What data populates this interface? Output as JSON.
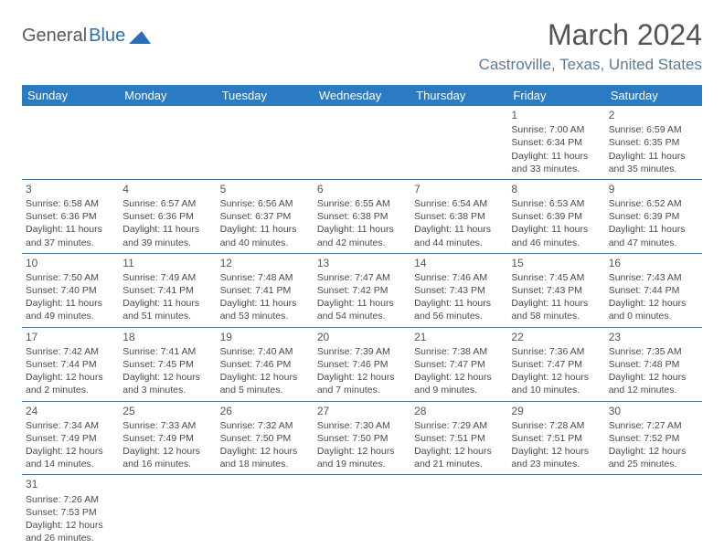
{
  "logo": {
    "part1": "General",
    "part2": "Blue"
  },
  "title": "March 2024",
  "location": "Castroville, Texas, United States",
  "colors": {
    "header_bg": "#2a7bc4",
    "header_text": "#ffffff",
    "border": "#2a7bc4",
    "location_text": "#5b7a99",
    "body_text": "#4a4a4a",
    "logo_accent": "#2a6fb5"
  },
  "day_headers": [
    "Sunday",
    "Monday",
    "Tuesday",
    "Wednesday",
    "Thursday",
    "Friday",
    "Saturday"
  ],
  "weeks": [
    [
      null,
      null,
      null,
      null,
      null,
      {
        "n": "1",
        "sr": "7:00 AM",
        "ss": "6:34 PM",
        "dh": "11",
        "dm": "33"
      },
      {
        "n": "2",
        "sr": "6:59 AM",
        "ss": "6:35 PM",
        "dh": "11",
        "dm": "35"
      }
    ],
    [
      {
        "n": "3",
        "sr": "6:58 AM",
        "ss": "6:36 PM",
        "dh": "11",
        "dm": "37"
      },
      {
        "n": "4",
        "sr": "6:57 AM",
        "ss": "6:36 PM",
        "dh": "11",
        "dm": "39"
      },
      {
        "n": "5",
        "sr": "6:56 AM",
        "ss": "6:37 PM",
        "dh": "11",
        "dm": "40"
      },
      {
        "n": "6",
        "sr": "6:55 AM",
        "ss": "6:38 PM",
        "dh": "11",
        "dm": "42"
      },
      {
        "n": "7",
        "sr": "6:54 AM",
        "ss": "6:38 PM",
        "dh": "11",
        "dm": "44"
      },
      {
        "n": "8",
        "sr": "6:53 AM",
        "ss": "6:39 PM",
        "dh": "11",
        "dm": "46"
      },
      {
        "n": "9",
        "sr": "6:52 AM",
        "ss": "6:39 PM",
        "dh": "11",
        "dm": "47"
      }
    ],
    [
      {
        "n": "10",
        "sr": "7:50 AM",
        "ss": "7:40 PM",
        "dh": "11",
        "dm": "49"
      },
      {
        "n": "11",
        "sr": "7:49 AM",
        "ss": "7:41 PM",
        "dh": "11",
        "dm": "51"
      },
      {
        "n": "12",
        "sr": "7:48 AM",
        "ss": "7:41 PM",
        "dh": "11",
        "dm": "53"
      },
      {
        "n": "13",
        "sr": "7:47 AM",
        "ss": "7:42 PM",
        "dh": "11",
        "dm": "54"
      },
      {
        "n": "14",
        "sr": "7:46 AM",
        "ss": "7:43 PM",
        "dh": "11",
        "dm": "56"
      },
      {
        "n": "15",
        "sr": "7:45 AM",
        "ss": "7:43 PM",
        "dh": "11",
        "dm": "58"
      },
      {
        "n": "16",
        "sr": "7:43 AM",
        "ss": "7:44 PM",
        "dh": "12",
        "dm": "0"
      }
    ],
    [
      {
        "n": "17",
        "sr": "7:42 AM",
        "ss": "7:44 PM",
        "dh": "12",
        "dm": "2"
      },
      {
        "n": "18",
        "sr": "7:41 AM",
        "ss": "7:45 PM",
        "dh": "12",
        "dm": "3"
      },
      {
        "n": "19",
        "sr": "7:40 AM",
        "ss": "7:46 PM",
        "dh": "12",
        "dm": "5"
      },
      {
        "n": "20",
        "sr": "7:39 AM",
        "ss": "7:46 PM",
        "dh": "12",
        "dm": "7"
      },
      {
        "n": "21",
        "sr": "7:38 AM",
        "ss": "7:47 PM",
        "dh": "12",
        "dm": "9"
      },
      {
        "n": "22",
        "sr": "7:36 AM",
        "ss": "7:47 PM",
        "dh": "12",
        "dm": "10"
      },
      {
        "n": "23",
        "sr": "7:35 AM",
        "ss": "7:48 PM",
        "dh": "12",
        "dm": "12"
      }
    ],
    [
      {
        "n": "24",
        "sr": "7:34 AM",
        "ss": "7:49 PM",
        "dh": "12",
        "dm": "14"
      },
      {
        "n": "25",
        "sr": "7:33 AM",
        "ss": "7:49 PM",
        "dh": "12",
        "dm": "16"
      },
      {
        "n": "26",
        "sr": "7:32 AM",
        "ss": "7:50 PM",
        "dh": "12",
        "dm": "18"
      },
      {
        "n": "27",
        "sr": "7:30 AM",
        "ss": "7:50 PM",
        "dh": "12",
        "dm": "19"
      },
      {
        "n": "28",
        "sr": "7:29 AM",
        "ss": "7:51 PM",
        "dh": "12",
        "dm": "21"
      },
      {
        "n": "29",
        "sr": "7:28 AM",
        "ss": "7:51 PM",
        "dh": "12",
        "dm": "23"
      },
      {
        "n": "30",
        "sr": "7:27 AM",
        "ss": "7:52 PM",
        "dh": "12",
        "dm": "25"
      }
    ],
    [
      {
        "n": "31",
        "sr": "7:26 AM",
        "ss": "7:53 PM",
        "dh": "12",
        "dm": "26"
      },
      null,
      null,
      null,
      null,
      null,
      null
    ]
  ]
}
